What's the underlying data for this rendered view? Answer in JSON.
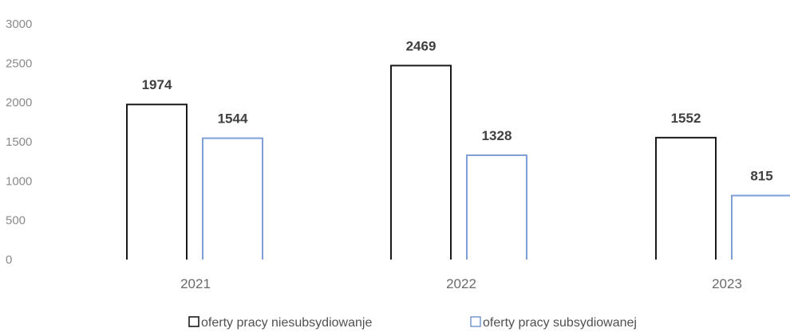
{
  "chart_data": {
    "type": "bar",
    "categories": [
      "2021",
      "2022",
      "2023"
    ],
    "series": [
      {
        "name": "oferty pracy niesubsydiowanje",
        "values": [
          1974,
          2469,
          1552
        ],
        "color": "#1a1a1a"
      },
      {
        "name": "oferty pracy subsydiowanej",
        "values": [
          1544,
          1328,
          815
        ],
        "color": "#7f9fd6"
      }
    ],
    "y_ticks": [
      "0",
      "500",
      "1000",
      "1500",
      "2000",
      "2500",
      "3000"
    ],
    "ylim": [
      0,
      3000
    ],
    "grid": false,
    "legend_position": "bottom"
  }
}
